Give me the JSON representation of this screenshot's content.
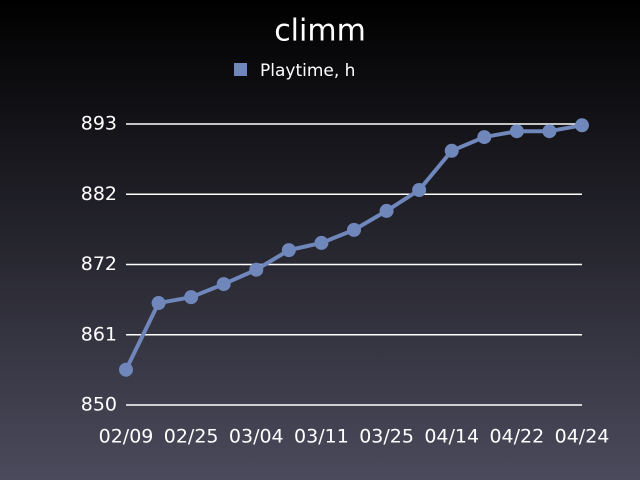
{
  "chart_data": {
    "type": "line",
    "title": "climm",
    "categories": [
      "02/09",
      null,
      "02/25",
      null,
      "03/04",
      null,
      "03/11",
      null,
      "03/25",
      null,
      "04/14",
      null,
      "04/22",
      null,
      "04/24"
    ],
    "series": [
      {
        "name": "Playtime, h",
        "color": "#6f87ba",
        "values": [
          855.4,
          865.6,
          866.5,
          868.5,
          870.7,
          873.7,
          874.8,
          876.8,
          879.7,
          882.9,
          888.9,
          891.0,
          891.9,
          891.9,
          892.8
        ]
      }
    ],
    "ylim": [
      850,
      893
    ],
    "yticks": [
      850,
      {
        "value": 860.75,
        "label": "861"
      },
      {
        "value": 871.5,
        "label": "872"
      },
      {
        "value": 882.25,
        "label": "882"
      },
      893
    ],
    "grid": true,
    "legend": "top"
  }
}
